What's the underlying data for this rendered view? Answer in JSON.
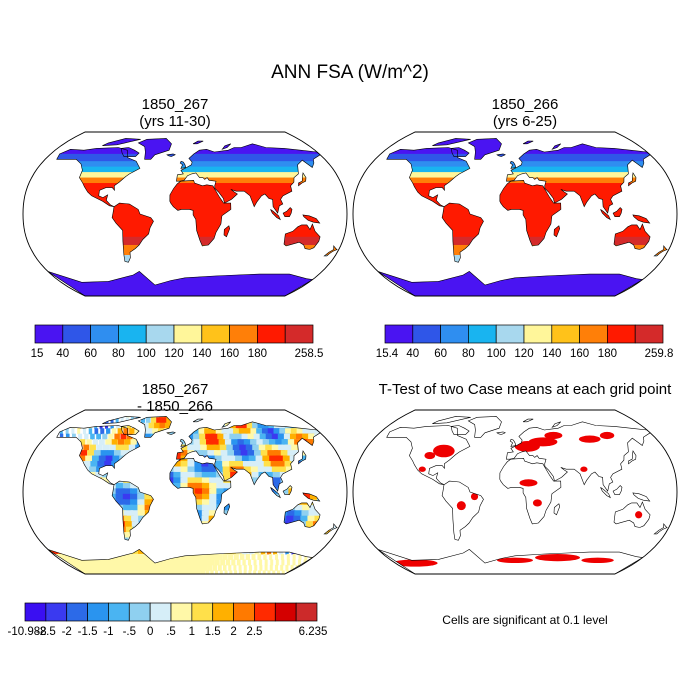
{
  "figure": {
    "title": "ANN FSA (W/m^2)",
    "panels": [
      {
        "id": "case1",
        "title_line1": "1850_267",
        "title_line2": "(yrs 11-30)",
        "palette": "seq"
      },
      {
        "id": "case2",
        "title_line1": "1850_266",
        "title_line2": "(yrs 6-25)",
        "palette": "seq"
      },
      {
        "id": "diff",
        "title_line1": "1850_267",
        "title_line2": "- 1850_266",
        "palette": "div"
      },
      {
        "id": "ttest",
        "title_line1": "T-Test of two Case means at each grid point",
        "title_line2": "",
        "palette": "ttest"
      }
    ],
    "colorbars": [
      {
        "id": "cbar1",
        "labels": [
          "15",
          "40",
          "60",
          "80",
          "100",
          "120",
          "140",
          "160",
          "180",
          "258.5"
        ],
        "colors": [
          "#4a14f2",
          "#2f56e8",
          "#2f8ef0",
          "#19b4f0",
          "#a8d8ee",
          "#fff69a",
          "#ffc21a",
          "#ff7f08",
          "#ff1a00",
          "#d42a2a"
        ]
      },
      {
        "id": "cbar2",
        "labels": [
          "15.4",
          "40",
          "60",
          "80",
          "100",
          "120",
          "140",
          "160",
          "180",
          "259.8"
        ],
        "colors": [
          "#4a14f2",
          "#2f56e8",
          "#2f8ef0",
          "#19b4f0",
          "#a8d8ee",
          "#fff69a",
          "#ffc21a",
          "#ff7f08",
          "#ff1a00",
          "#d42a2a"
        ]
      },
      {
        "id": "cbar3",
        "labels": [
          "-10.988",
          "-2.5",
          "-2",
          "-1.5",
          "-1",
          "-.5",
          "0",
          ".5",
          "1",
          "1.5",
          "2",
          "2.5",
          "6.235"
        ],
        "colors": [
          "#3a0ff2",
          "#3a3af0",
          "#2c6ae8",
          "#2a94ef",
          "#4ab4f2",
          "#8fd0f0",
          "#d6eef8",
          "#fff8a8",
          "#ffe04a",
          "#ffb000",
          "#ff7a00",
          "#ff2a00",
          "#d40000",
          "#cc2a2a"
        ]
      }
    ],
    "ttest_note": "Cells are significant at 0.1 level",
    "significant_color": "#ee0000"
  }
}
